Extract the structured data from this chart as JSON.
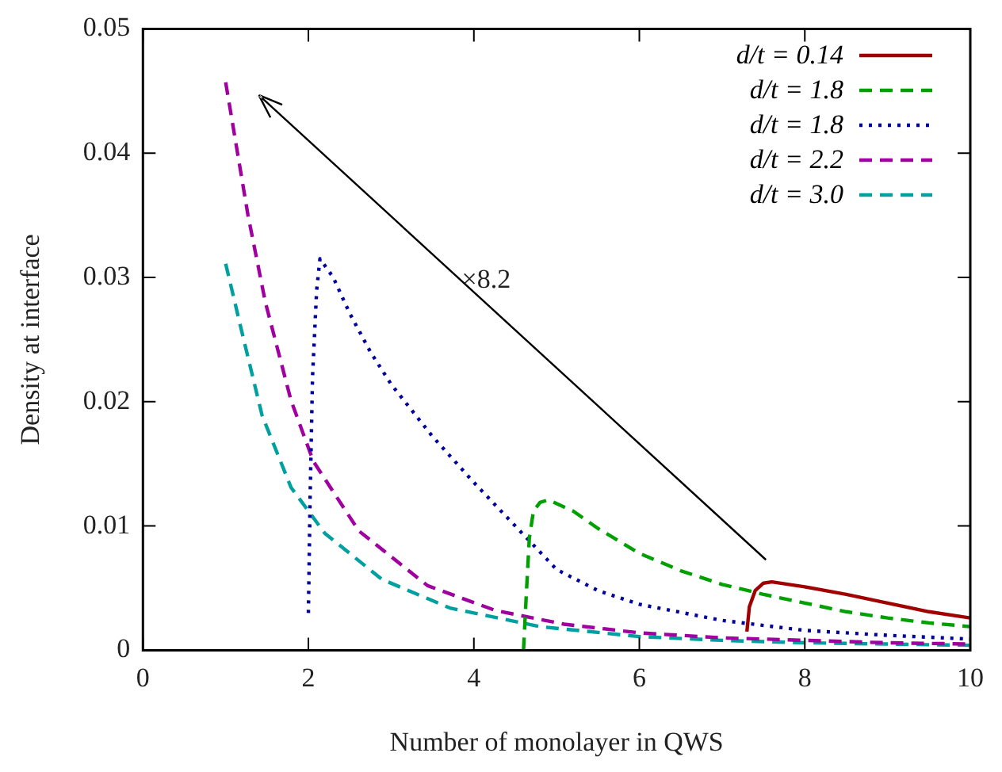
{
  "chart_data": {
    "type": "line",
    "xlabel": "Number of monolayer in QWS",
    "ylabel": "Density at interface",
    "xlim": [
      0,
      10
    ],
    "xticks": [
      0,
      2,
      4,
      6,
      8,
      10
    ],
    "ylim": [
      0,
      0.05
    ],
    "yticks": [
      0,
      0.01,
      0.02,
      0.03,
      0.04,
      0.05
    ],
    "grid": false,
    "legend": "top right",
    "marker": "none",
    "annotations": [
      "×8.2"
    ],
    "series": [
      {
        "name": "d/t = 0.14",
        "color": "#a00000",
        "line_style": "solid",
        "x": [
          7.3,
          7.33,
          7.4,
          7.5,
          7.6,
          8,
          8.5,
          9,
          9.5,
          10
        ],
        "values": [
          0.0015,
          0.0035,
          0.0048,
          0.0054,
          0.0055,
          0.0051,
          0.0045,
          0.0038,
          0.0031,
          0.0026
        ]
      },
      {
        "name": "d/t = 1.8",
        "color": "#00a000",
        "line_style": "dashed",
        "x": [
          4.6,
          4.63,
          4.67,
          4.72,
          4.8,
          4.9,
          5.2,
          5.5,
          6,
          6.5,
          7,
          7.5,
          8,
          8.5,
          9,
          9.5,
          10
        ],
        "values": [
          0,
          0.004,
          0.009,
          0.0112,
          0.0119,
          0.0121,
          0.0112,
          0.0098,
          0.0078,
          0.0064,
          0.0053,
          0.0045,
          0.0038,
          0.0031,
          0.0026,
          0.0022,
          0.0019
        ]
      },
      {
        "name": "d/t = 1.8",
        "color": "#0000a0",
        "line_style": "dotted",
        "x": [
          2,
          2.02,
          2.05,
          2.1,
          2.14,
          2.3,
          2.5,
          2.75,
          3,
          3.5,
          4,
          4.5,
          5,
          5.5,
          6,
          7,
          8,
          9,
          10
        ],
        "values": [
          0.003,
          0.012,
          0.022,
          0.029,
          0.0315,
          0.03,
          0.0271,
          0.024,
          0.0214,
          0.0172,
          0.0135,
          0.01,
          0.0065,
          0.0048,
          0.0037,
          0.0024,
          0.0016,
          0.0012,
          0.0009
        ]
      },
      {
        "name": "d/t = 2.2",
        "color": "#a000a0",
        "line_style": "dashed",
        "x": [
          1,
          1.27,
          1.48,
          1.79,
          2.06,
          2.61,
          3.44,
          4.26,
          5.09,
          6,
          7,
          8,
          9,
          10
        ],
        "values": [
          0.0457,
          0.035,
          0.028,
          0.0201,
          0.0152,
          0.0096,
          0.0052,
          0.0032,
          0.0021,
          0.0014,
          0.001,
          0.0008,
          0.0006,
          0.0005
        ]
      },
      {
        "name": "d/t = 3.0",
        "color": "#00a0a0",
        "line_style": "dashed",
        "x": [
          1,
          1.2,
          1.44,
          1.79,
          2.2,
          2.89,
          3.71,
          4.8,
          6,
          7,
          8,
          9,
          10
        ],
        "values": [
          0.0311,
          0.0255,
          0.0189,
          0.0131,
          0.0094,
          0.0057,
          0.0034,
          0.0019,
          0.0011,
          0.0008,
          0.0006,
          0.0005,
          0.0004
        ]
      }
    ]
  }
}
